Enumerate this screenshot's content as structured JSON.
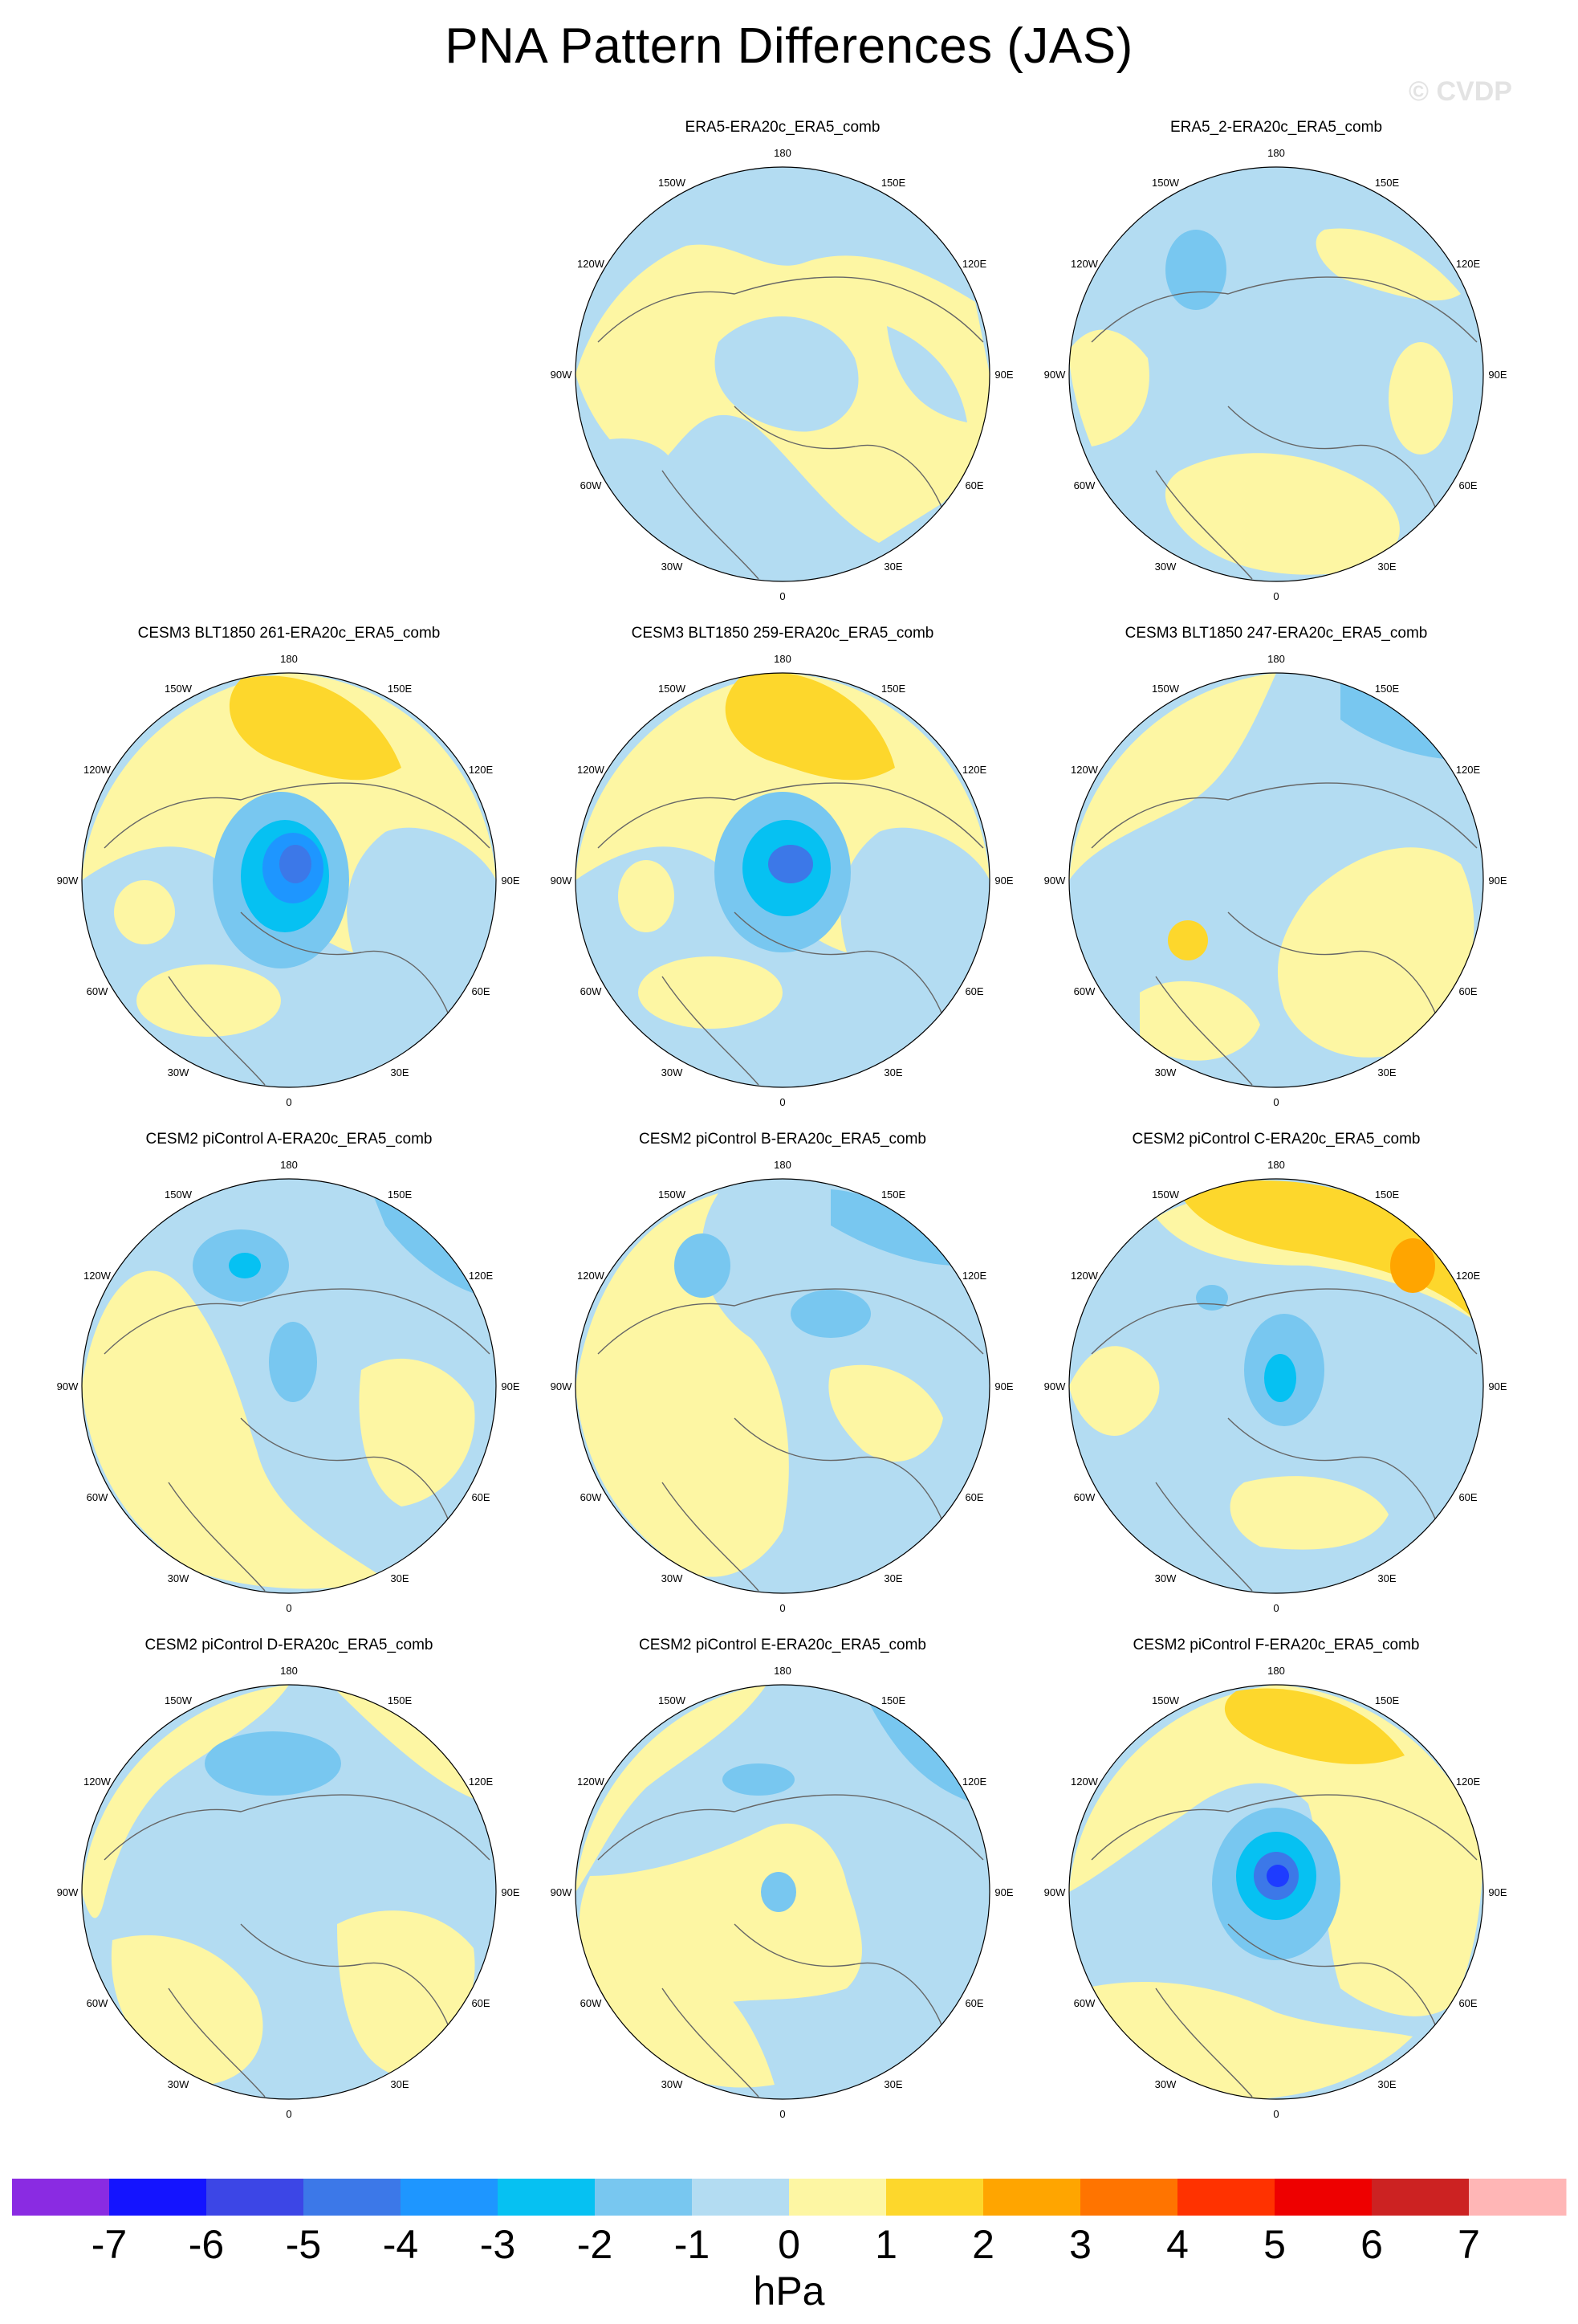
{
  "title": "PNA Pattern Differences (JAS)",
  "watermark": "© CVDP",
  "colors": {
    "neg1": "#b3dcf2",
    "neg2": "#78c7f0",
    "neg3": "#06c1f2",
    "neg4": "#1e96ff",
    "neg5": "#3c78e8",
    "neg6": "#1e3cff",
    "neg7": "#1414ff",
    "pos1": "#fdf6a3",
    "pos2": "#fdd72c",
    "pos3": "#ffa500",
    "land": "#666666"
  },
  "chart_data": {
    "type": "heatmap",
    "projection": "polar stereographic, Northern Hemisphere",
    "variable": "PNA pattern difference (JAS)",
    "units": "hPa",
    "colorbar": {
      "labels": [
        "-7",
        "-6",
        "-5",
        "-4",
        "-3",
        "-2",
        "-1",
        "0",
        "1",
        "2",
        "3",
        "4",
        "5",
        "6",
        "7"
      ],
      "colors": [
        "#8a2be2",
        "#1414ff",
        "#3c46e6",
        "#3c78e8",
        "#1e96ff",
        "#06c1f2",
        "#78c7f0",
        "#b3dcf2",
        "#fdf6a3",
        "#fdd72c",
        "#ffa500",
        "#ff7400",
        "#ff3200",
        "#ee0000",
        "#cc2222",
        "#ffb6b6"
      ]
    },
    "lon_labels": [
      "180",
      "150E",
      "120E",
      "90E",
      "60E",
      "30E",
      "0",
      "30W",
      "60W",
      "90W",
      "120W",
      "150W"
    ],
    "panels": [
      {
        "title": "ERA5-ERA20c_ERA5_comb"
      },
      {
        "title": "ERA5_2-ERA20c_ERA5_comb"
      },
      {
        "title": "CESM3 BLT1850 261-ERA20c_ERA5_comb"
      },
      {
        "title": "CESM3 BLT1850 259-ERA20c_ERA5_comb"
      },
      {
        "title": "CESM3 BLT1850 247-ERA20c_ERA5_comb"
      },
      {
        "title": "CESM2 piControl A-ERA20c_ERA5_comb"
      },
      {
        "title": "CESM2 piControl B-ERA20c_ERA5_comb"
      },
      {
        "title": "CESM2 piControl C-ERA20c_ERA5_comb"
      },
      {
        "title": "CESM2 piControl D-ERA20c_ERA5_comb"
      },
      {
        "title": "CESM2 piControl E-ERA20c_ERA5_comb"
      },
      {
        "title": "CESM2 piControl F-ERA20c_ERA5_comb"
      }
    ]
  }
}
